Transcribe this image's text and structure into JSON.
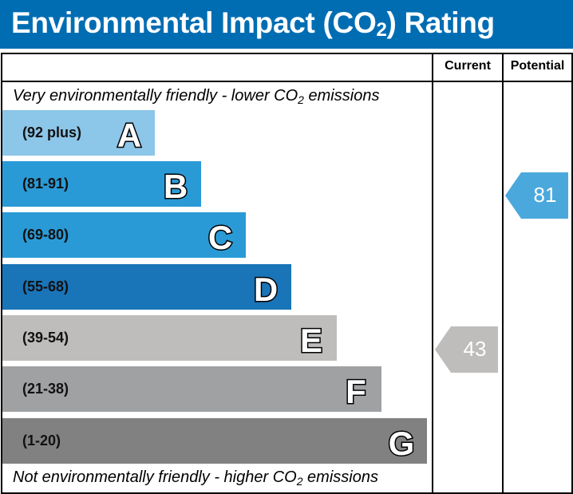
{
  "header": {
    "title_main": "Environmental Impact (CO",
    "title_sub": "2",
    "title_end": ") Rating",
    "color": "#006db3"
  },
  "columns": {
    "current": "Current",
    "potential": "Potential"
  },
  "notes": {
    "top_main": "Very environmentally friendly - lower CO",
    "top_sub": "2",
    "top_end": " emissions",
    "bottom_main": "Not environmentally friendly - higher CO",
    "bottom_sub": "2",
    "bottom_end": " emissions"
  },
  "chart_data": {
    "type": "bar",
    "bands": [
      {
        "letter": "A",
        "range": "(92 plus)",
        "color": "#8cc6e8"
      },
      {
        "letter": "B",
        "range": "(81-91)",
        "color": "#2a9ad6"
      },
      {
        "letter": "C",
        "range": "(69-80)",
        "color": "#2a9ad6"
      },
      {
        "letter": "D",
        "range": "(55-68)",
        "color": "#1a74b8"
      },
      {
        "letter": "E",
        "range": "(39-54)",
        "color": "#bebdbb"
      },
      {
        "letter": "F",
        "range": "(21-38)",
        "color": "#a0a1a3"
      },
      {
        "letter": "G",
        "range": "(1-20)",
        "color": "#818181"
      }
    ],
    "current": {
      "value": "43",
      "band": "E",
      "color": "#bebdbb"
    },
    "potential": {
      "value": "81",
      "band": "B",
      "color": "#4aa8dc"
    }
  }
}
